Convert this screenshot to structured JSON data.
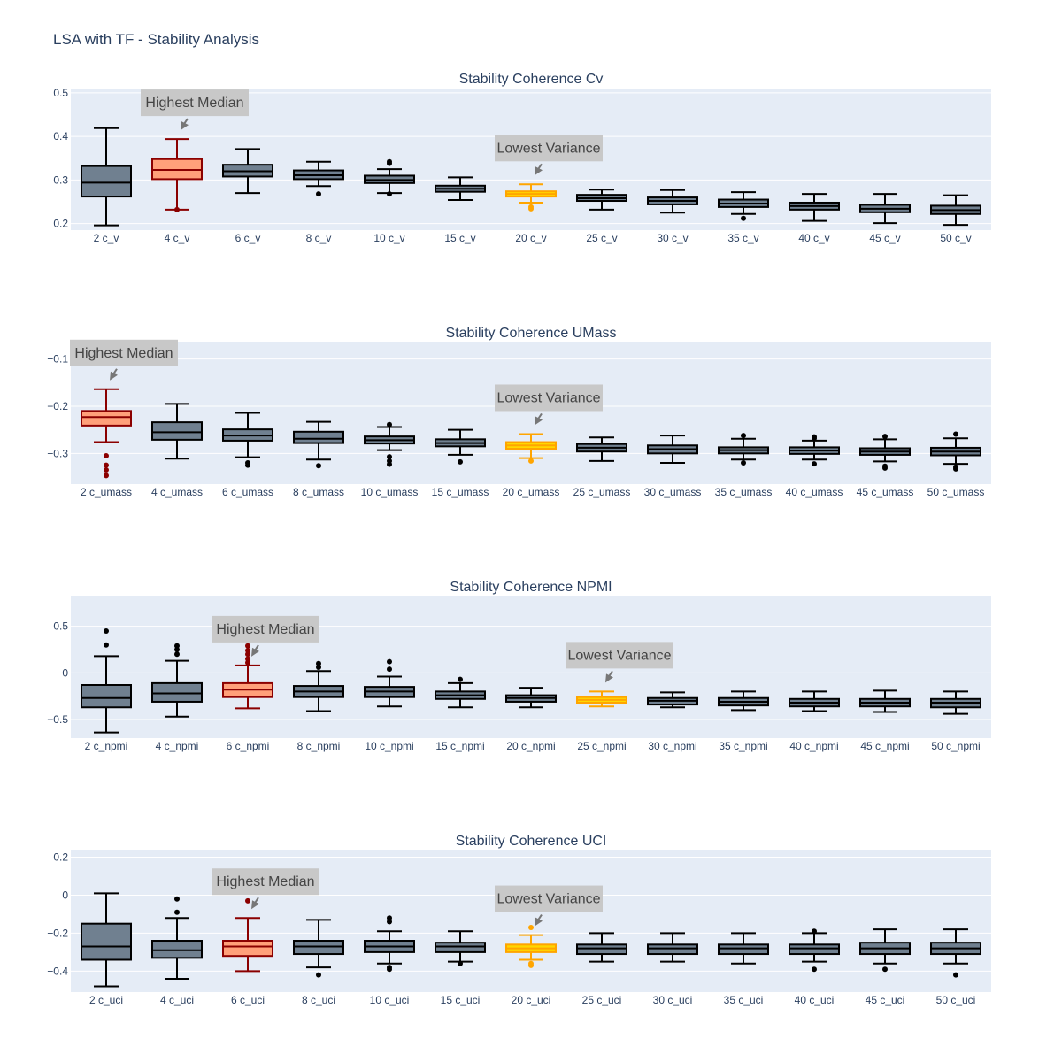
{
  "title": "LSA with TF - Stability Analysis",
  "colors": {
    "plot_bg": "#E5ECF6",
    "grid": "#ffffff",
    "default_fill": "#708090",
    "default_line": "#000000",
    "highest_median_fill": "#FFA07A",
    "highest_median_line": "#8B0000",
    "lowest_variance_fill": "#FFD700",
    "lowest_variance_line": "#FFA500",
    "annotation_bg": "#C8C8C8",
    "annotation_arrow": "#777777"
  },
  "chart_data": [
    {
      "type": "box",
      "title": "Stability Coherence Cv",
      "ylim": [
        0.185,
        0.51
      ],
      "yticks": [
        0.2,
        0.3,
        0.4,
        0.5
      ],
      "ytick_labels": [
        "0.2",
        "0.3",
        "0.4",
        "0.5"
      ],
      "categories": [
        "2 c_v",
        "4 c_v",
        "6 c_v",
        "8 c_v",
        "10 c_v",
        "15 c_v",
        "20 c_v",
        "25 c_v",
        "30 c_v",
        "35 c_v",
        "40 c_v",
        "45 c_v",
        "50 c_v"
      ],
      "boxes": [
        {
          "min": 0.196,
          "q1": 0.262,
          "median": 0.294,
          "q3": 0.332,
          "max": 0.419,
          "outliers": []
        },
        {
          "min": 0.232,
          "q1": 0.302,
          "median": 0.323,
          "q3": 0.348,
          "max": 0.394,
          "outliers": [
            0.232
          ]
        },
        {
          "min": 0.27,
          "q1": 0.308,
          "median": 0.32,
          "q3": 0.335,
          "max": 0.371,
          "outliers": []
        },
        {
          "min": 0.286,
          "q1": 0.302,
          "median": 0.311,
          "q3": 0.322,
          "max": 0.342,
          "outliers": [
            0.268
          ]
        },
        {
          "min": 0.27,
          "q1": 0.293,
          "median": 0.3,
          "q3": 0.31,
          "max": 0.325,
          "outliers": [
            0.268,
            0.338,
            0.342
          ]
        },
        {
          "min": 0.254,
          "q1": 0.273,
          "median": 0.28,
          "q3": 0.287,
          "max": 0.306,
          "outliers": []
        },
        {
          "min": 0.248,
          "q1": 0.262,
          "median": 0.268,
          "q3": 0.274,
          "max": 0.29,
          "outliers": [
            0.234,
            0.238
          ]
        },
        {
          "min": 0.232,
          "q1": 0.252,
          "median": 0.258,
          "q3": 0.266,
          "max": 0.278,
          "outliers": []
        },
        {
          "min": 0.225,
          "q1": 0.244,
          "median": 0.252,
          "q3": 0.26,
          "max": 0.277,
          "outliers": []
        },
        {
          "min": 0.222,
          "q1": 0.238,
          "median": 0.246,
          "q3": 0.255,
          "max": 0.272,
          "outliers": [
            0.212
          ]
        },
        {
          "min": 0.206,
          "q1": 0.232,
          "median": 0.24,
          "q3": 0.248,
          "max": 0.268,
          "outliers": []
        },
        {
          "min": 0.201,
          "q1": 0.226,
          "median": 0.234,
          "q3": 0.243,
          "max": 0.268,
          "outliers": []
        },
        {
          "min": 0.197,
          "q1": 0.222,
          "median": 0.231,
          "q3": 0.241,
          "max": 0.265,
          "outliers": []
        }
      ],
      "highest_median_index": 1,
      "lowest_variance_index": 6,
      "annotations": {
        "highest_median": "Highest Median",
        "lowest_variance": "Lowest Variance"
      }
    },
    {
      "type": "box",
      "title": "Stability Coherence UMass",
      "ylim": [
        -0.365,
        -0.065
      ],
      "yticks": [
        -0.3,
        -0.2,
        -0.1
      ],
      "ytick_labels": [
        "−0.3",
        "−0.2",
        "−0.1"
      ],
      "categories": [
        "2 c_umass",
        "4 c_umass",
        "6 c_umass",
        "8 c_umass",
        "10 c_umass",
        "15 c_umass",
        "20 c_umass",
        "25 c_umass",
        "30 c_umass",
        "35 c_umass",
        "40 c_umass",
        "45 c_umass",
        "50 c_umass"
      ],
      "boxes": [
        {
          "min": -0.276,
          "q1": -0.241,
          "median": -0.223,
          "q3": -0.21,
          "max": -0.164,
          "outliers": [
            -0.305,
            -0.325,
            -0.335,
            -0.347
          ]
        },
        {
          "min": -0.311,
          "q1": -0.271,
          "median": -0.255,
          "q3": -0.234,
          "max": -0.195,
          "outliers": []
        },
        {
          "min": -0.308,
          "q1": -0.273,
          "median": -0.262,
          "q3": -0.249,
          "max": -0.214,
          "outliers": [
            -0.32,
            -0.325
          ]
        },
        {
          "min": -0.313,
          "q1": -0.278,
          "median": -0.269,
          "q3": -0.254,
          "max": -0.233,
          "outliers": [
            -0.326
          ]
        },
        {
          "min": -0.293,
          "q1": -0.279,
          "median": -0.272,
          "q3": -0.264,
          "max": -0.244,
          "outliers": [
            -0.239,
            -0.307,
            -0.316,
            -0.323
          ]
        },
        {
          "min": -0.303,
          "q1": -0.285,
          "median": -0.278,
          "q3": -0.27,
          "max": -0.25,
          "outliers": [
            -0.318
          ]
        },
        {
          "min": -0.31,
          "q1": -0.29,
          "median": -0.283,
          "q3": -0.276,
          "max": -0.259,
          "outliers": [
            -0.316
          ]
        },
        {
          "min": -0.316,
          "q1": -0.296,
          "median": -0.288,
          "q3": -0.28,
          "max": -0.266,
          "outliers": []
        },
        {
          "min": -0.32,
          "q1": -0.3,
          "median": -0.291,
          "q3": -0.283,
          "max": -0.262,
          "outliers": []
        },
        {
          "min": -0.313,
          "q1": -0.3,
          "median": -0.293,
          "q3": -0.287,
          "max": -0.269,
          "outliers": [
            -0.262,
            -0.32
          ]
        },
        {
          "min": -0.313,
          "q1": -0.301,
          "median": -0.294,
          "q3": -0.287,
          "max": -0.273,
          "outliers": [
            -0.265,
            -0.268,
            -0.322
          ]
        },
        {
          "min": -0.317,
          "q1": -0.303,
          "median": -0.296,
          "q3": -0.289,
          "max": -0.27,
          "outliers": [
            -0.264,
            -0.327,
            -0.331
          ]
        },
        {
          "min": -0.322,
          "q1": -0.304,
          "median": -0.296,
          "q3": -0.288,
          "max": -0.268,
          "outliers": [
            -0.259,
            -0.329,
            -0.333
          ]
        }
      ],
      "highest_median_index": 0,
      "lowest_variance_index": 6,
      "annotations": {
        "highest_median": "Highest Median",
        "lowest_variance": "Lowest Variance"
      }
    },
    {
      "type": "box",
      "title": "Stability Coherence NPMI",
      "ylim": [
        -0.7,
        0.82
      ],
      "yticks": [
        -0.5,
        0,
        0.5
      ],
      "ytick_labels": [
        "−0.5",
        "0",
        "0.5"
      ],
      "categories": [
        "2 c_npmi",
        "4 c_npmi",
        "6 c_npmi",
        "8 c_npmi",
        "10 c_npmi",
        "15 c_npmi",
        "20 c_npmi",
        "25 c_npmi",
        "30 c_npmi",
        "35 c_npmi",
        "40 c_npmi",
        "45 c_npmi",
        "50 c_npmi"
      ],
      "boxes": [
        {
          "min": -0.64,
          "q1": -0.37,
          "median": -0.27,
          "q3": -0.13,
          "max": 0.18,
          "outliers": [
            0.3,
            0.45
          ]
        },
        {
          "min": -0.47,
          "q1": -0.31,
          "median": -0.22,
          "q3": -0.11,
          "max": 0.13,
          "outliers": [
            0.2,
            0.25,
            0.29
          ]
        },
        {
          "min": -0.38,
          "q1": -0.26,
          "median": -0.18,
          "q3": -0.11,
          "max": 0.08,
          "outliers": [
            0.11,
            0.15,
            0.2,
            0.24,
            0.29
          ]
        },
        {
          "min": -0.41,
          "q1": -0.26,
          "median": -0.2,
          "q3": -0.14,
          "max": 0.02,
          "outliers": [
            0.06,
            0.1
          ]
        },
        {
          "min": -0.36,
          "q1": -0.26,
          "median": -0.2,
          "q3": -0.15,
          "max": -0.04,
          "outliers": [
            0.04,
            0.12
          ]
        },
        {
          "min": -0.37,
          "q1": -0.28,
          "median": -0.24,
          "q3": -0.2,
          "max": -0.11,
          "outliers": [
            -0.07
          ]
        },
        {
          "min": -0.37,
          "q1": -0.31,
          "median": -0.27,
          "q3": -0.24,
          "max": -0.16,
          "outliers": []
        },
        {
          "min": -0.36,
          "q1": -0.32,
          "median": -0.29,
          "q3": -0.26,
          "max": -0.2,
          "outliers": []
        },
        {
          "min": -0.37,
          "q1": -0.34,
          "median": -0.3,
          "q3": -0.27,
          "max": -0.21,
          "outliers": []
        },
        {
          "min": -0.4,
          "q1": -0.35,
          "median": -0.31,
          "q3": -0.27,
          "max": -0.2,
          "outliers": []
        },
        {
          "min": -0.41,
          "q1": -0.36,
          "median": -0.32,
          "q3": -0.28,
          "max": -0.2,
          "outliers": []
        },
        {
          "min": -0.42,
          "q1": -0.36,
          "median": -0.32,
          "q3": -0.28,
          "max": -0.19,
          "outliers": []
        },
        {
          "min": -0.44,
          "q1": -0.37,
          "median": -0.32,
          "q3": -0.28,
          "max": -0.2,
          "outliers": []
        }
      ],
      "highest_median_index": 2,
      "lowest_variance_index": 7,
      "annotations": {
        "highest_median": "Highest Median",
        "lowest_variance": "Lowest Variance"
      }
    },
    {
      "type": "box",
      "title": "Stability Coherence UCI",
      "ylim": [
        -0.51,
        0.235
      ],
      "yticks": [
        -0.4,
        -0.2,
        0,
        0.2
      ],
      "ytick_labels": [
        "−0.4",
        "−0.2",
        "0",
        "0.2"
      ],
      "categories": [
        "2 c_uci",
        "4 c_uci",
        "6 c_uci",
        "8 c_uci",
        "10 c_uci",
        "15 c_uci",
        "20 c_uci",
        "25 c_uci",
        "30 c_uci",
        "35 c_uci",
        "40 c_uci",
        "45 c_uci",
        "50 c_uci"
      ],
      "boxes": [
        {
          "min": -0.48,
          "q1": -0.34,
          "median": -0.27,
          "q3": -0.15,
          "max": 0.01,
          "outliers": []
        },
        {
          "min": -0.44,
          "q1": -0.33,
          "median": -0.29,
          "q3": -0.24,
          "max": -0.12,
          "outliers": [
            -0.09,
            -0.02
          ]
        },
        {
          "min": -0.4,
          "q1": -0.32,
          "median": -0.27,
          "q3": -0.24,
          "max": -0.12,
          "outliers": [
            -0.03
          ]
        },
        {
          "min": -0.38,
          "q1": -0.31,
          "median": -0.27,
          "q3": -0.24,
          "max": -0.13,
          "outliers": [
            -0.42
          ]
        },
        {
          "min": -0.36,
          "q1": -0.3,
          "median": -0.27,
          "q3": -0.24,
          "max": -0.19,
          "outliers": [
            -0.12,
            -0.14,
            -0.38,
            -0.39
          ]
        },
        {
          "min": -0.35,
          "q1": -0.3,
          "median": -0.27,
          "q3": -0.25,
          "max": -0.19,
          "outliers": [
            -0.36
          ]
        },
        {
          "min": -0.34,
          "q1": -0.3,
          "median": -0.28,
          "q3": -0.26,
          "max": -0.21,
          "outliers": [
            -0.17,
            -0.36,
            -0.37
          ]
        },
        {
          "min": -0.35,
          "q1": -0.31,
          "median": -0.28,
          "q3": -0.26,
          "max": -0.2,
          "outliers": []
        },
        {
          "min": -0.35,
          "q1": -0.31,
          "median": -0.28,
          "q3": -0.26,
          "max": -0.2,
          "outliers": []
        },
        {
          "min": -0.36,
          "q1": -0.31,
          "median": -0.28,
          "q3": -0.26,
          "max": -0.2,
          "outliers": []
        },
        {
          "min": -0.35,
          "q1": -0.31,
          "median": -0.28,
          "q3": -0.26,
          "max": -0.2,
          "outliers": [
            -0.19,
            -0.39
          ]
        },
        {
          "min": -0.36,
          "q1": -0.31,
          "median": -0.28,
          "q3": -0.25,
          "max": -0.18,
          "outliers": [
            -0.39
          ]
        },
        {
          "min": -0.36,
          "q1": -0.31,
          "median": -0.28,
          "q3": -0.25,
          "max": -0.18,
          "outliers": [
            -0.42
          ]
        }
      ],
      "highest_median_index": 2,
      "lowest_variance_index": 6,
      "annotations": {
        "highest_median": "Highest Median",
        "lowest_variance": "Lowest Variance"
      }
    }
  ]
}
